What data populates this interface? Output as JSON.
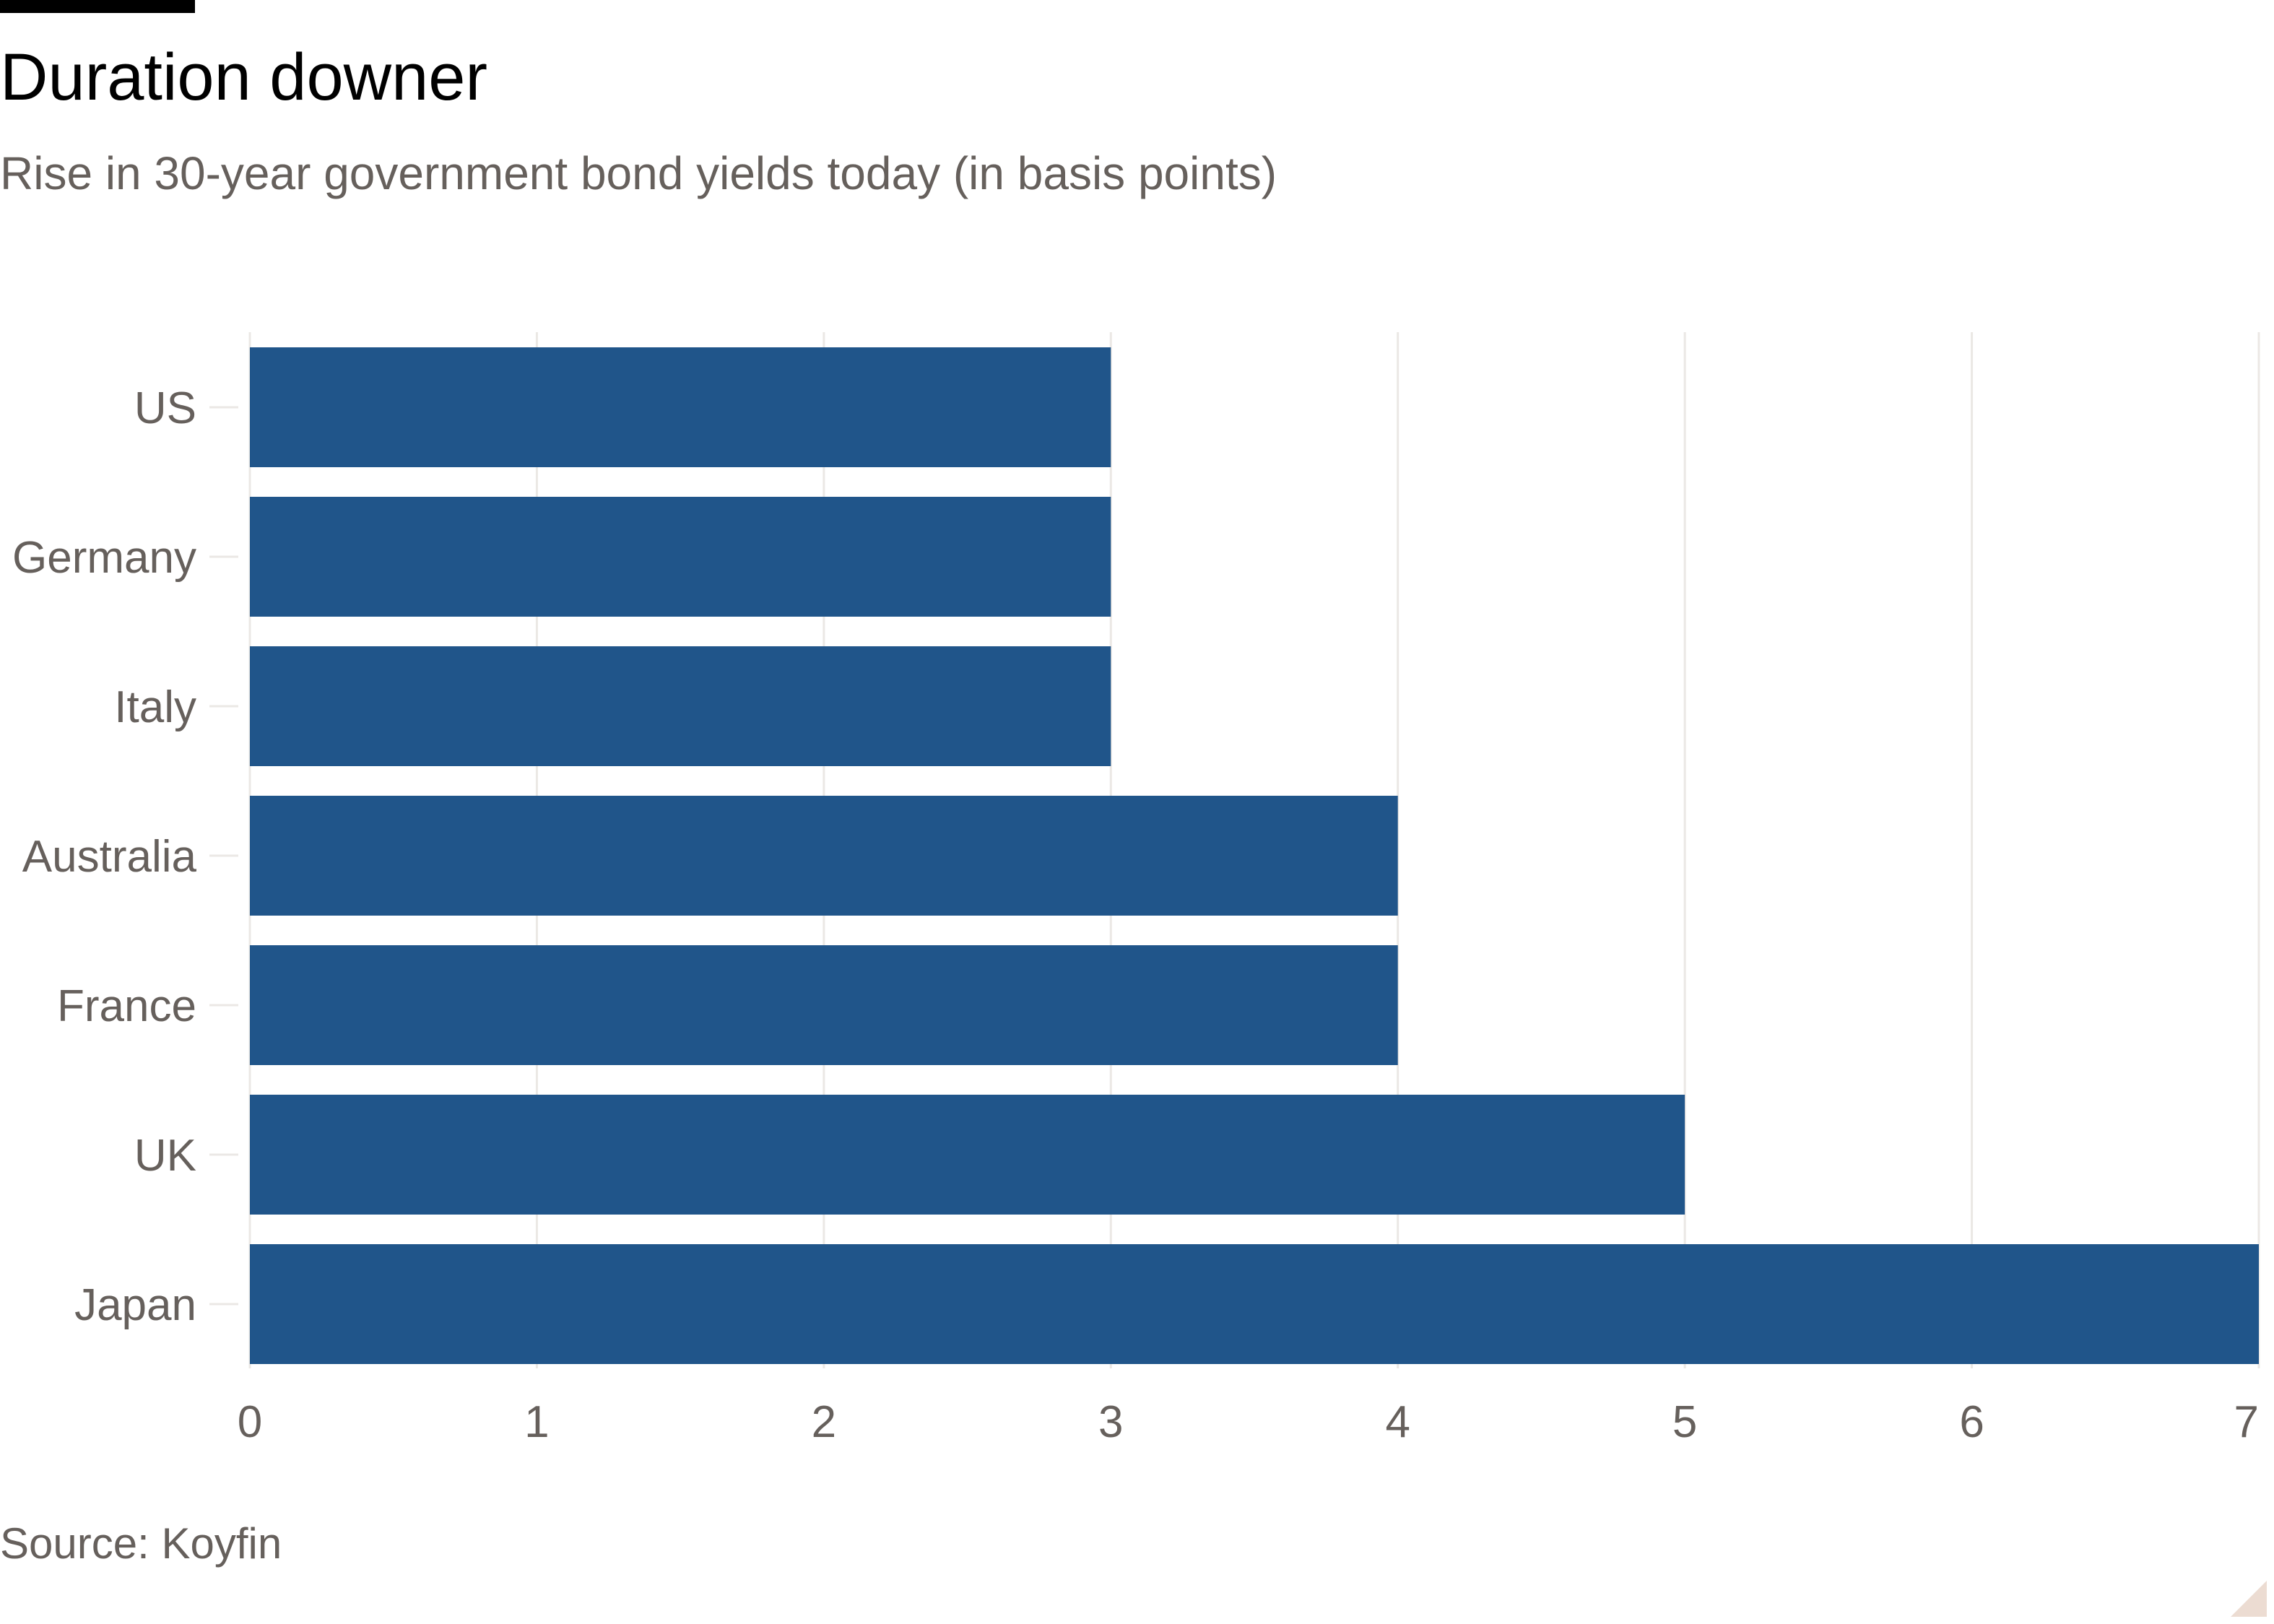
{
  "header": {
    "title": "Duration downer",
    "subtitle": "Rise in 30-year government bond yields today (in basis points)"
  },
  "footer": {
    "source": "Source: Koyfin"
  },
  "colors": {
    "bar": "#20558a",
    "grid": "#ebe8e5",
    "text": "#66605c",
    "title": "#000000"
  },
  "chart_data": {
    "type": "bar",
    "orientation": "horizontal",
    "title": "Duration downer",
    "subtitle": "Rise in 30-year government bond yields today (in basis points)",
    "categories": [
      "US",
      "Germany",
      "Italy",
      "Australia",
      "France",
      "UK",
      "Japan"
    ],
    "values": [
      3,
      3,
      3,
      4,
      4,
      5,
      7
    ],
    "xlim": [
      0,
      7
    ],
    "xticks": [
      0,
      1,
      2,
      3,
      4,
      5,
      6,
      7
    ],
    "grid": true,
    "legend": "none",
    "source": "Source: Koyfin"
  }
}
